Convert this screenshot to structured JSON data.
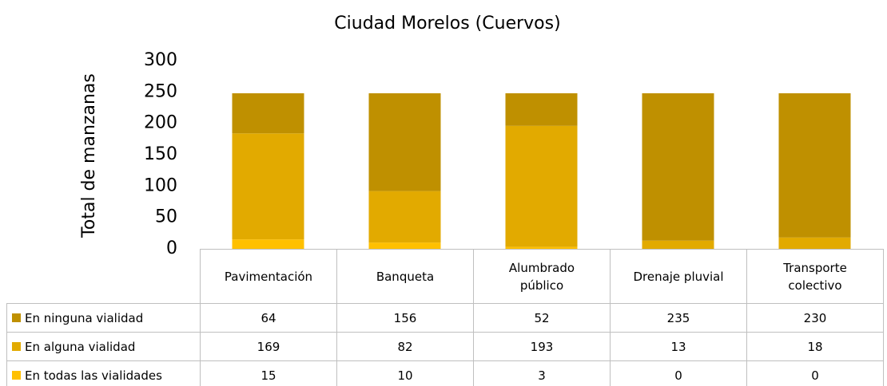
{
  "chart_data": {
    "type": "stacked_bar",
    "title": "Ciudad Morelos (Cuervos)",
    "y_label": "Total de manzanas",
    "categories": [
      "Pavimentación",
      "Banqueta",
      "Alumbrado público",
      "Drenaje pluvial",
      "Transporte colectivo"
    ],
    "series": [
      {
        "name": "En ninguna vialidad",
        "color": "#bf9000",
        "values": [
          64,
          156,
          52,
          235,
          230
        ]
      },
      {
        "name": "En alguna vialidad",
        "color": "#e2aa00",
        "values": [
          169,
          82,
          193,
          13,
          18
        ]
      },
      {
        "name": "En todas las vialidades",
        "color": "#ffc000",
        "values": [
          15,
          10,
          3,
          0,
          0
        ]
      }
    ],
    "ylim": [
      0,
      300
    ],
    "yticks": [
      0,
      50,
      100,
      150,
      200,
      250,
      300
    ],
    "grid": false,
    "data_table": true
  }
}
